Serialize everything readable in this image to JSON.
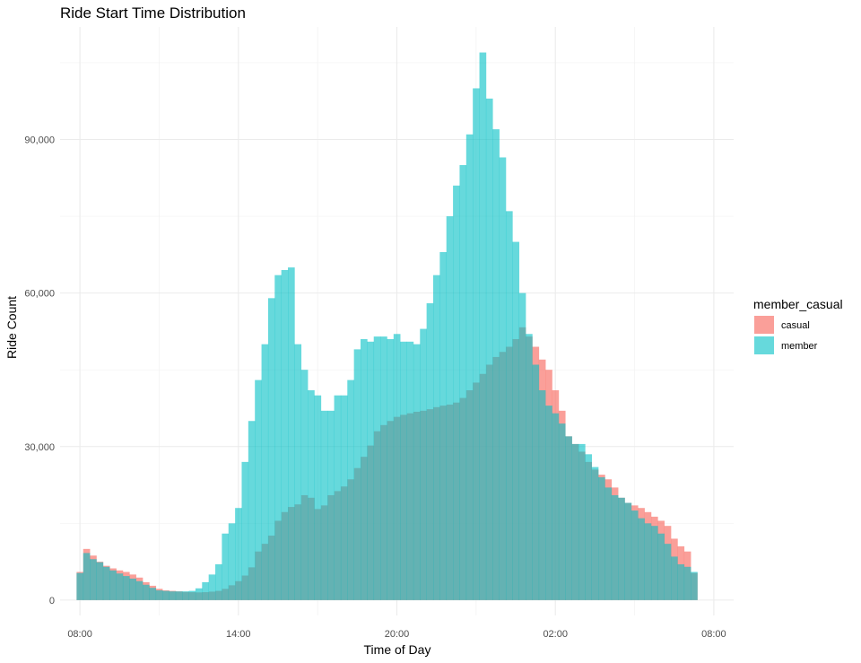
{
  "chart_data": {
    "type": "histogram",
    "title": "Ride Start Time Distribution",
    "xlabel": "Time of Day",
    "ylabel": "Ride Count",
    "x_start_label": "08:00",
    "bin_width_minutes": 15,
    "xlim_hours": [
      -0.75,
      24.75
    ],
    "ylim": [
      -3000,
      112000
    ],
    "x_ticks": [
      {
        "hour": 0,
        "label": "08:00"
      },
      {
        "hour": 6,
        "label": "14:00"
      },
      {
        "hour": 12,
        "label": "20:00"
      },
      {
        "hour": 18,
        "label": "02:00"
      },
      {
        "hour": 24,
        "label": "08:00"
      }
    ],
    "y_ticks": [
      {
        "value": 0,
        "label": "0"
      },
      {
        "value": 30000,
        "label": "30,000"
      },
      {
        "value": 60000,
        "label": "60,000"
      },
      {
        "value": 90000,
        "label": "90,000"
      }
    ],
    "grid": true,
    "legend": {
      "title": "member_casual",
      "position": "right"
    },
    "series": [
      {
        "name": "casual",
        "color": "#F8766D",
        "alpha": 0.7,
        "values": [
          5500,
          10000,
          8700,
          7500,
          6700,
          6200,
          5800,
          5500,
          5000,
          4400,
          3500,
          2800,
          2200,
          1900,
          1800,
          1700,
          1600,
          1550,
          1500,
          1550,
          1650,
          1800,
          2200,
          2900,
          3700,
          4800,
          6400,
          9500,
          11000,
          12600,
          15500,
          17200,
          18200,
          18700,
          20500,
          20000,
          17800,
          18500,
          20500,
          21300,
          22200,
          23600,
          25800,
          28000,
          30200,
          33000,
          34200,
          35000,
          35800,
          36200,
          36500,
          36800,
          37000,
          37300,
          37700,
          38000,
          38200,
          38600,
          39500,
          41000,
          42500,
          44200,
          46000,
          47500,
          48500,
          49500,
          51000,
          53300,
          51500,
          49500,
          47000,
          45000,
          41000,
          37000,
          32000,
          30500,
          29000,
          27000,
          25500,
          24500,
          23600,
          22000,
          20000,
          19000,
          18500,
          18000,
          17200,
          16300,
          15500,
          14500,
          12000,
          10500,
          9500,
          5300
        ]
      },
      {
        "name": "member",
        "color": "#00BFC4",
        "alpha": 0.6,
        "values": [
          5300,
          9200,
          8000,
          7400,
          6500,
          5800,
          5200,
          4700,
          4200,
          3700,
          3000,
          2400,
          1900,
          1800,
          1700,
          1700,
          1700,
          1800,
          2300,
          3500,
          5000,
          7000,
          13000,
          15000,
          18000,
          27000,
          35000,
          43000,
          50000,
          59000,
          63500,
          64500,
          65000,
          50000,
          45000,
          41000,
          40000,
          37000,
          37000,
          40000,
          40000,
          43000,
          49000,
          51000,
          50500,
          51500,
          51500,
          51000,
          52000,
          50500,
          50500,
          50000,
          53000,
          58000,
          63500,
          68000,
          75000,
          81000,
          85000,
          91000,
          100000,
          107000,
          98000,
          92000,
          86500,
          76000,
          70000,
          60000,
          52000,
          46000,
          41000,
          38000,
          36500,
          34500,
          32000,
          30500,
          30500,
          28500,
          26000,
          24000,
          22000,
          20500,
          20000,
          19000,
          17500,
          16000,
          15000,
          14500,
          13000,
          11000,
          8500,
          7000,
          6500,
          5500
        ]
      }
    ]
  }
}
